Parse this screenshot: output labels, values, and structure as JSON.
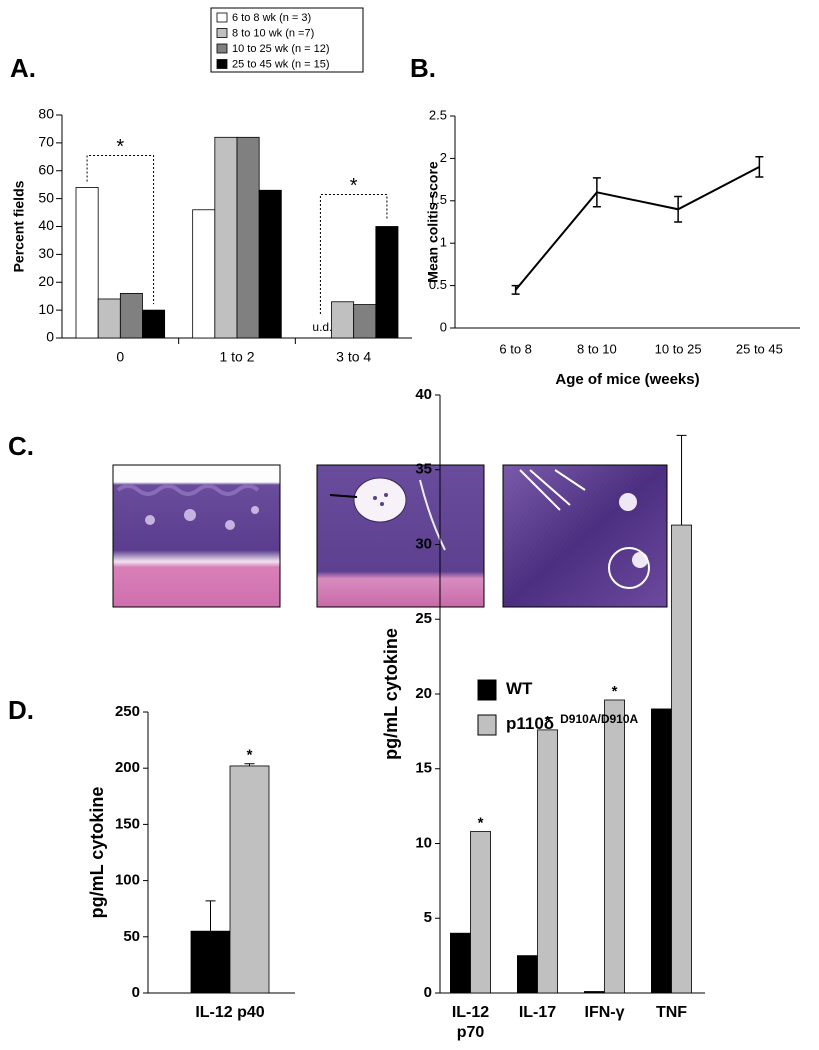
{
  "chart_data": [
    {
      "type": "bar",
      "panel_label": "A.",
      "ylabel": "Percent fields",
      "categories": [
        "0",
        "1 to 2",
        "3 to 4"
      ],
      "series": [
        {
          "name": "6 to 8 wk (n = 3)",
          "color": "#ffffff",
          "values": [
            54,
            46,
            null
          ],
          "value_labels": [
            null,
            null,
            "u.d."
          ]
        },
        {
          "name": "8 to 10 wk (n =7)",
          "color": "#c0c0c0",
          "values": [
            14,
            72,
            13
          ]
        },
        {
          "name": "10 to 25 wk (n = 12)",
          "color": "#808080",
          "values": [
            16,
            72,
            12
          ]
        },
        {
          "name": "25 to 45 wk (n = 15)",
          "color": "#000000",
          "values": [
            10,
            53,
            40
          ]
        }
      ],
      "ylim": [
        0,
        80
      ],
      "yticks": [
        0,
        10,
        20,
        30,
        40,
        50,
        60,
        70,
        80
      ],
      "grid": false,
      "legend": "top",
      "significance": [
        {
          "text": "*",
          "category": 0,
          "series": [
            0,
            3
          ]
        },
        {
          "text": "*",
          "category": 2,
          "series": [
            0,
            3
          ]
        }
      ]
    },
    {
      "type": "line",
      "panel_label": "B.",
      "ylabel": "Mean colitis score",
      "xlabel": "Age of mice (weeks)",
      "categories": [
        "6 to 8",
        "8 to 10",
        "10 to 25",
        "25 to 45"
      ],
      "values": [
        0.45,
        1.6,
        1.4,
        1.9
      ],
      "errors": [
        0.05,
        0.17,
        0.15,
        0.12
      ],
      "color": "#000000",
      "ylim": [
        0,
        2.5
      ],
      "yticks": [
        0,
        0.5,
        1,
        1.5,
        2,
        2.5
      ],
      "grid": false
    },
    {
      "type": "bar",
      "panel_label": "D.",
      "ylabel": "pg/mL cytokine",
      "categories": [
        "IL-12 p40"
      ],
      "series": [
        {
          "color": "#000000",
          "values": [
            55
          ],
          "errors": [
            27
          ]
        },
        {
          "color": "#c0c0c0",
          "values": [
            202
          ],
          "errors": [
            2
          ]
        }
      ],
      "ylim": [
        0,
        250
      ],
      "yticks": [
        0,
        50,
        100,
        150,
        200,
        250
      ],
      "grid": false,
      "significance": [
        {
          "text": "*",
          "category": 0,
          "series": [
            1
          ]
        }
      ]
    },
    {
      "type": "bar",
      "ylabel": "pg/mL cytokine",
      "categories": [
        [
          "IL-12",
          "p70"
        ],
        [
          "IL-17"
        ],
        [
          "IFN-γ"
        ],
        [
          "TNF"
        ]
      ],
      "series": [
        {
          "name": "WT",
          "color": "#000000",
          "values": [
            4,
            2.5,
            0.1,
            19
          ]
        },
        {
          "name": "p110δ",
          "name_superscript": "D910A/D910A",
          "color": "#c0c0c0",
          "values": [
            10.8,
            17.6,
            19.6,
            31.3
          ],
          "errors": [
            null,
            null,
            null,
            6
          ]
        }
      ],
      "ylim": [
        0,
        40
      ],
      "yticks": [
        0,
        5,
        10,
        15,
        20,
        25,
        30,
        35,
        40
      ],
      "grid": false,
      "legend": "top-left",
      "significance": [
        {
          "text": "*",
          "category": 0,
          "series": [
            1
          ]
        },
        {
          "text": "*",
          "category": 1,
          "series": [
            1
          ]
        },
        {
          "text": "*",
          "category": 2,
          "series": [
            1
          ]
        }
      ]
    }
  ],
  "panel_c": {
    "label": "C."
  }
}
